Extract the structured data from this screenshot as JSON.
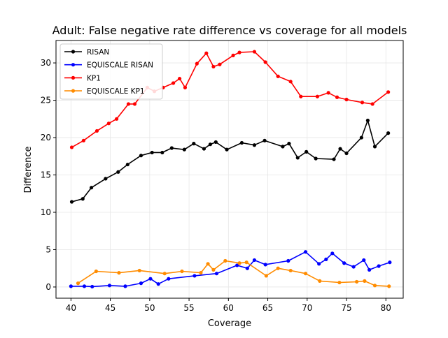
{
  "chart_data": {
    "type": "line",
    "title": "Adult: False negative rate difference vs coverage for all models",
    "xlabel": "Coverage",
    "ylabel": "Difference",
    "xlim": [
      38.1,
      82.2
    ],
    "ylim": [
      -1.5,
      33.0
    ],
    "xticks": [
      40,
      45,
      50,
      55,
      60,
      65,
      70,
      75,
      80
    ],
    "yticks": [
      0,
      5,
      10,
      15,
      20,
      25,
      30
    ],
    "grid": true,
    "legend_position": "top-left",
    "series": [
      {
        "name": "RISAN",
        "color": "#000000",
        "x": [
          40.1,
          41.5,
          42.6,
          44.4,
          46.0,
          47.2,
          48.9,
          50.3,
          51.6,
          52.8,
          54.4,
          55.6,
          56.9,
          57.7,
          58.4,
          59.8,
          61.7,
          63.3,
          64.6,
          66.9,
          67.7,
          68.8,
          69.9,
          71.1,
          73.4,
          74.2,
          75.0,
          76.9,
          77.7,
          78.6,
          80.3
        ],
        "y": [
          11.4,
          11.8,
          13.3,
          14.5,
          15.4,
          16.4,
          17.6,
          18.0,
          18.0,
          18.6,
          18.4,
          19.2,
          18.5,
          19.1,
          19.4,
          18.4,
          19.3,
          19.0,
          19.6,
          18.8,
          19.2,
          17.3,
          18.1,
          17.2,
          17.1,
          18.5,
          17.9,
          20.0,
          22.3,
          18.8,
          20.6
        ]
      },
      {
        "name": "EQUISCALE RISAN",
        "color": "#0000ff",
        "x": [
          40.0,
          41.7,
          42.7,
          44.9,
          46.9,
          48.9,
          50.1,
          51.1,
          52.4,
          55.7,
          58.5,
          61.1,
          62.4,
          63.3,
          64.7,
          67.6,
          69.8,
          71.5,
          72.4,
          73.2,
          74.7,
          75.9,
          77.2,
          77.9,
          79.1,
          80.5
        ],
        "y": [
          0.1,
          0.1,
          0.05,
          0.2,
          0.1,
          0.5,
          1.1,
          0.4,
          1.1,
          1.5,
          1.8,
          2.9,
          2.5,
          3.6,
          3.0,
          3.5,
          4.7,
          3.1,
          3.7,
          4.5,
          3.2,
          2.7,
          3.6,
          2.3,
          2.8,
          3.3
        ]
      },
      {
        "name": "KP1",
        "color": "#ff0000",
        "x": [
          40.1,
          41.6,
          43.3,
          44.8,
          45.8,
          47.3,
          48.1,
          49.7,
          50.6,
          51.7,
          53.0,
          53.8,
          54.5,
          56.0,
          57.2,
          58.1,
          58.9,
          60.6,
          61.4,
          63.3,
          64.7,
          66.3,
          67.9,
          69.2,
          71.3,
          72.7,
          73.8,
          75.0,
          77.0,
          78.3,
          80.3
        ],
        "y": [
          18.7,
          19.6,
          20.9,
          21.9,
          22.5,
          24.5,
          24.5,
          26.7,
          26.2,
          26.7,
          27.3,
          27.9,
          26.7,
          29.9,
          31.3,
          29.5,
          29.8,
          31.0,
          31.4,
          31.5,
          30.1,
          28.2,
          27.5,
          25.5,
          25.5,
          26.0,
          25.4,
          25.1,
          24.7,
          24.5,
          26.1
        ]
      },
      {
        "name": "EQUISCALE KP1",
        "color": "#ff8c00",
        "x": [
          40.9,
          43.2,
          46.1,
          48.7,
          51.9,
          54.1,
          56.5,
          57.4,
          58.1,
          59.6,
          61.4,
          62.3,
          64.8,
          66.3,
          67.9,
          69.8,
          71.6,
          74.1,
          76.3,
          77.3,
          78.6,
          80.4
        ],
        "y": [
          0.5,
          2.1,
          1.9,
          2.2,
          1.8,
          2.1,
          1.9,
          3.1,
          2.3,
          3.5,
          3.2,
          3.3,
          1.5,
          2.5,
          2.2,
          1.8,
          0.8,
          0.6,
          0.7,
          0.8,
          0.2,
          0.1
        ]
      }
    ]
  }
}
